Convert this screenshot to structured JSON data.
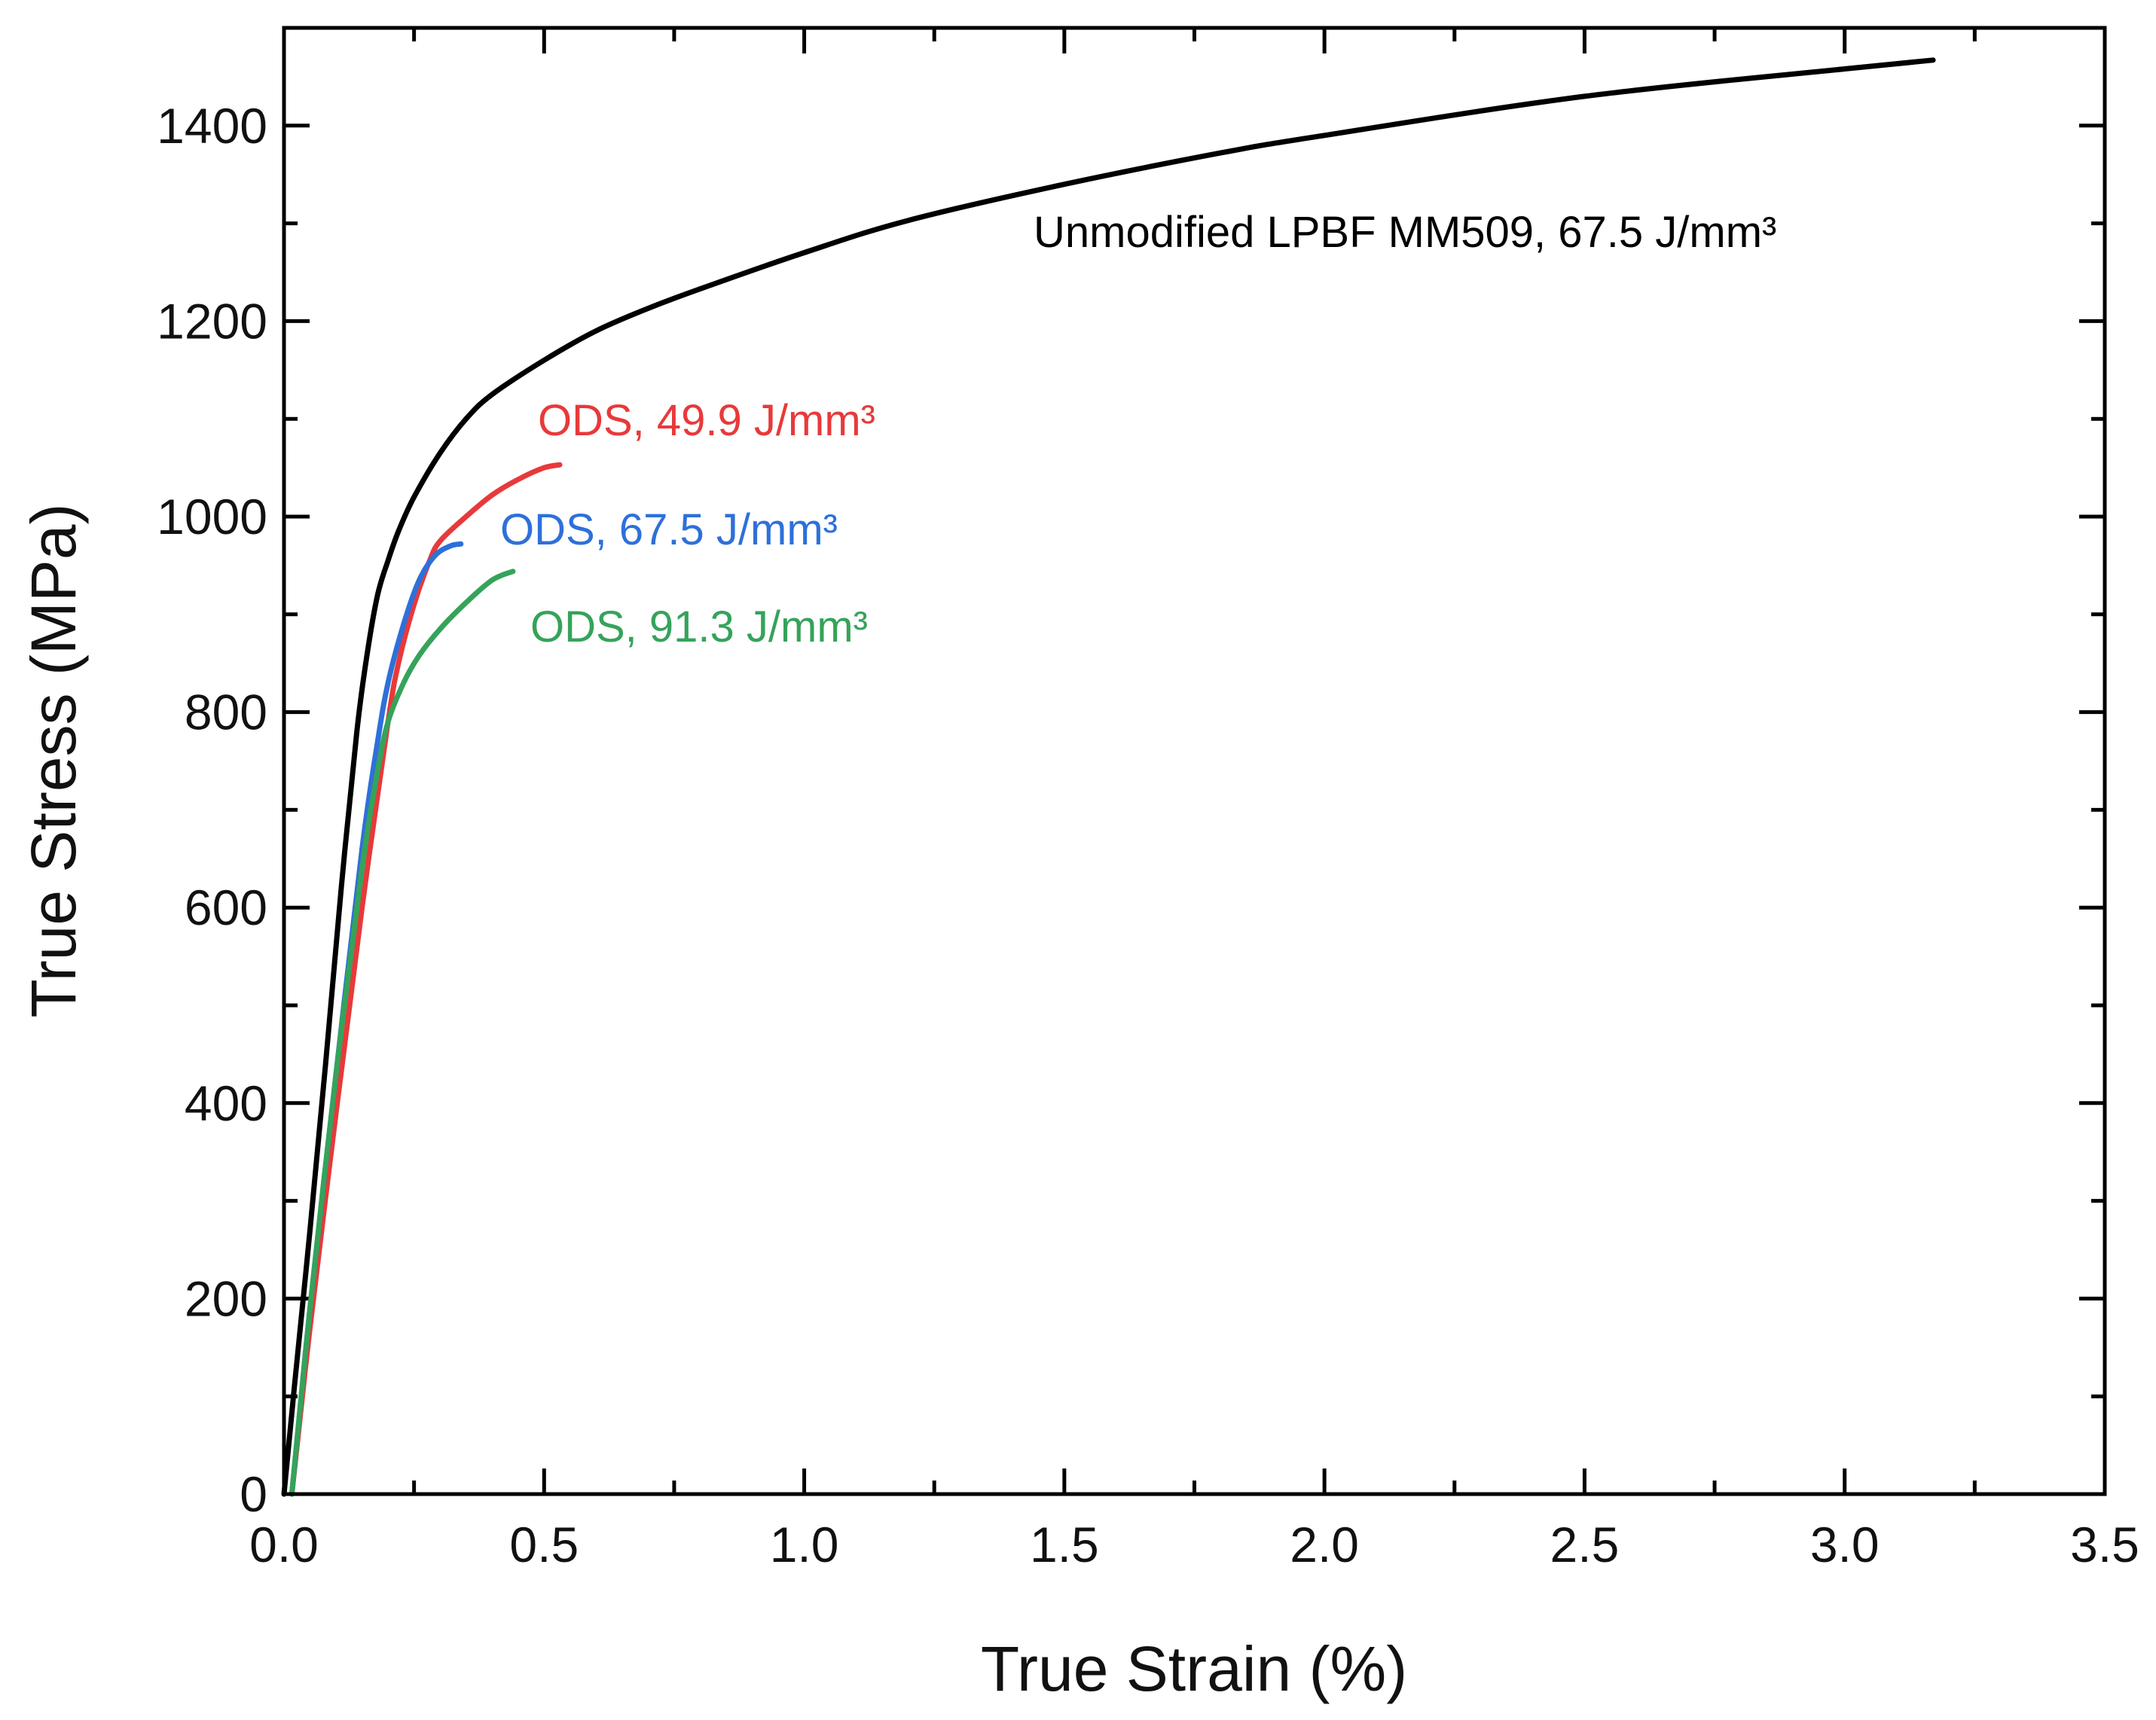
{
  "chart_data": {
    "type": "line",
    "title": "",
    "xlabel": "True Strain (%)",
    "ylabel": "True Stress (MPa)",
    "xlim": [
      0,
      3.5
    ],
    "ylim": [
      0,
      1500
    ],
    "x_ticks": [
      "0.0",
      "0.5",
      "1.0",
      "1.5",
      "2.0",
      "2.5",
      "3.0",
      "3.5"
    ],
    "x_tick_values": [
      0,
      0.5,
      1.0,
      1.5,
      2.0,
      2.5,
      3.0,
      3.5
    ],
    "y_ticks": [
      "0",
      "200",
      "400",
      "600",
      "800",
      "1000",
      "1200",
      "1400"
    ],
    "y_tick_values": [
      0,
      200,
      400,
      600,
      800,
      1000,
      1200,
      1400
    ],
    "grid": false,
    "series": [
      {
        "name": "Unmodified LPBF MM509, 67.5 J/mm³",
        "color": "#000000",
        "x": [
          0,
          0.02,
          0.05,
          0.08,
          0.11,
          0.14,
          0.16,
          0.18,
          0.2,
          0.22,
          0.25,
          0.3,
          0.35,
          0.4,
          0.5,
          0.6,
          0.7,
          0.8,
          1.0,
          1.2,
          1.5,
          1.8,
          2.0,
          2.5,
          3.0,
          3.17
        ],
        "y": [
          0,
          110,
          270,
          440,
          620,
          780,
          860,
          920,
          955,
          985,
          1020,
          1065,
          1100,
          1125,
          1160,
          1190,
          1213,
          1233,
          1270,
          1303,
          1340,
          1372,
          1390,
          1430,
          1458,
          1467
        ]
      },
      {
        "name": "ODS, 49.9 J/mm³",
        "color": "#e8393a",
        "x": [
          0.015,
          0.05,
          0.1,
          0.15,
          0.2,
          0.22,
          0.25,
          0.28,
          0.3,
          0.35,
          0.4,
          0.45,
          0.5,
          0.53
        ],
        "y": [
          0,
          170,
          390,
          600,
          790,
          850,
          910,
          955,
          975,
          1000,
          1022,
          1038,
          1050,
          1053
        ]
      },
      {
        "name": "ODS, 67.5 J/mm³",
        "color": "#2e70d9",
        "x": [
          0.015,
          0.05,
          0.1,
          0.15,
          0.18,
          0.2,
          0.23,
          0.26,
          0.29,
          0.32,
          0.34
        ],
        "y": [
          0,
          190,
          430,
          660,
          770,
          830,
          890,
          935,
          960,
          970,
          972
        ]
      },
      {
        "name": "ODS, 91.3 J/mm³",
        "color": "#35a35a",
        "x": [
          0.015,
          0.05,
          0.1,
          0.15,
          0.18,
          0.2,
          0.23,
          0.26,
          0.3,
          0.35,
          0.4,
          0.44
        ],
        "y": [
          0,
          190,
          430,
          640,
          740,
          790,
          830,
          858,
          885,
          912,
          935,
          944
        ]
      }
    ],
    "annotations": [
      {
        "text": "Unmodified LPBF MM509, 67.5 J/mm³",
        "color": "#000000"
      },
      {
        "text": "ODS, 49.9 J/mm³",
        "color": "#e8393a"
      },
      {
        "text": "ODS, 67.5 J/mm³",
        "color": "#2e70d9"
      },
      {
        "text": "ODS, 91.3 J/mm³",
        "color": "#35a35a"
      }
    ]
  }
}
